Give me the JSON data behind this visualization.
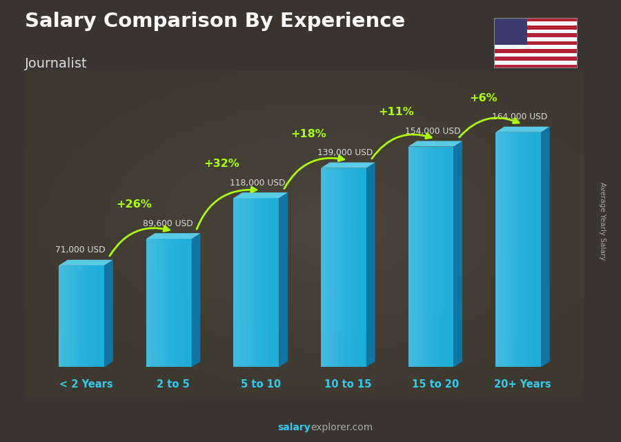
{
  "title": "Salary Comparison By Experience",
  "subtitle": "Journalist",
  "categories": [
    "< 2 Years",
    "2 to 5",
    "5 to 10",
    "10 to 15",
    "15 to 20",
    "20+ Years"
  ],
  "values": [
    71000,
    89600,
    118000,
    139000,
    154000,
    164000
  ],
  "labels": [
    "71,000 USD",
    "89,600 USD",
    "118,000 USD",
    "139,000 USD",
    "154,000 USD",
    "164,000 USD"
  ],
  "pct_changes": [
    "+26%",
    "+32%",
    "+18%",
    "+11%",
    "+6%"
  ],
  "bar_face_color": "#1ab8e8",
  "bar_right_color": "#0d7aad",
  "bar_top_color": "#5dd4f0",
  "bar_left_color": "#0a6a99",
  "ylabel_text": "Average Yearly Salary",
  "watermark_salary": "salary",
  "watermark_rest": "explorer.com",
  "background_color": "#3a3530",
  "title_color": "#ffffff",
  "subtitle_color": "#dddddd",
  "label_color": "#dddddd",
  "pct_color": "#aaff00",
  "cat_color": "#33ccee",
  "watermark_color": "#aaaaaa",
  "ylabel_color": "#aaaaaa"
}
